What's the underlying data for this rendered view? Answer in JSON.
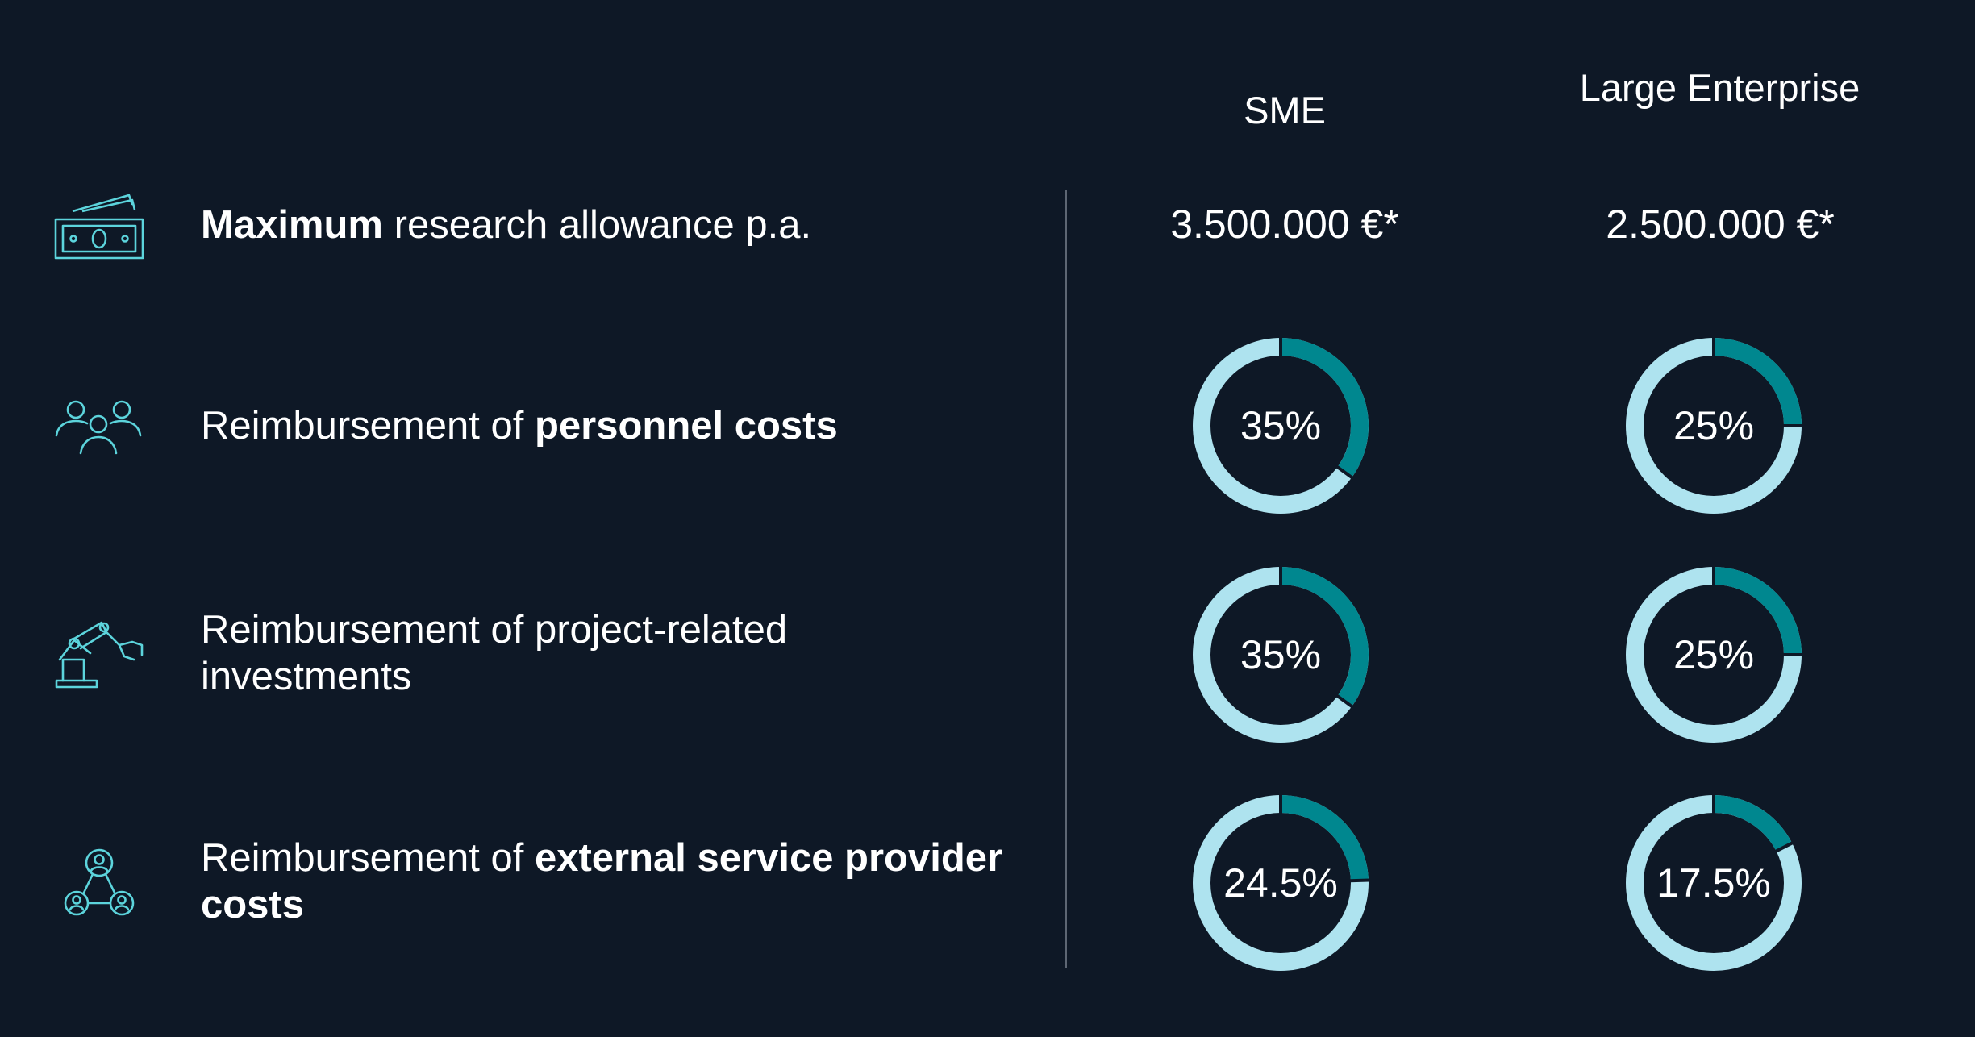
{
  "colors": {
    "background": "#0e1826",
    "ring_base": "#aee3ef",
    "ring_share": "#00878f",
    "icon_stroke": "#5cd4dc",
    "divider": "#5d6673"
  },
  "headers": {
    "sme": "SME",
    "large_enterprise": "Large Enterprise"
  },
  "rows": [
    {
      "icon": "money-icon",
      "label_bold": "Maximum",
      "label_rest": " research allowance p.a.",
      "sme": "3.500.000 €*",
      "large": "2.500.000 €*"
    },
    {
      "icon": "people-group-icon",
      "label_plain": "Reimbursement of ",
      "label_strong": "personnel costs"
    },
    {
      "icon": "robot-arm-icon",
      "label_plain": "Reimbursement of project-related investments"
    },
    {
      "icon": "network-people-icon",
      "label_plain": "Reimbursement of ",
      "label_strong": "external service provider costs"
    }
  ],
  "chart_data": {
    "type": "donut",
    "columns": [
      "SME",
      "Large Enterprise"
    ],
    "rows": [
      "Reimbursement of personnel costs",
      "Reimbursement of project-related investments",
      "Reimbursement of external service provider costs"
    ],
    "values": [
      {
        "sme": 35,
        "large": 25
      },
      {
        "sme": 35,
        "large": 25
      },
      {
        "sme": 24.5,
        "large": 17.5
      }
    ],
    "labels": [
      {
        "sme": "35%",
        "large": "25%"
      },
      {
        "sme": "35%",
        "large": "25%"
      },
      {
        "sme": "24.5%",
        "large": "17.5%"
      }
    ]
  }
}
